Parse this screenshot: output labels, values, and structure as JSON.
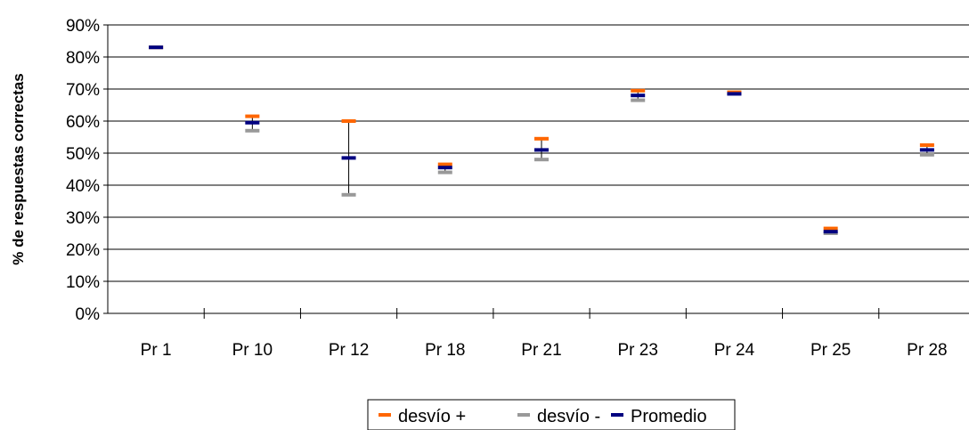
{
  "chart_data": {
    "type": "scatter",
    "title": "",
    "xlabel": "",
    "ylabel": "% de respuestas correctas",
    "ylim": [
      0,
      90
    ],
    "y_ticks": [
      "0%",
      "10%",
      "20%",
      "30%",
      "40%",
      "50%",
      "60%",
      "70%",
      "80%",
      "90%"
    ],
    "categories": [
      "Pr 1",
      "Pr 10",
      "Pr 12",
      "Pr 18",
      "Pr 21",
      "Pr 23",
      "Pr 24",
      "Pr 25",
      "Pr 28"
    ],
    "series": [
      {
        "name": "desvío +",
        "color": "#ff6600",
        "values": [
          83,
          61.5,
          60,
          46.5,
          54.5,
          69.5,
          69,
          26.5,
          52.5
        ]
      },
      {
        "name": "desvío -",
        "color": "#999999",
        "values": [
          83,
          57,
          37,
          44,
          48,
          66.5,
          68.5,
          25,
          49.5
        ]
      },
      {
        "name": "Promedio",
        "color": "#000080",
        "values": [
          83,
          59.5,
          48.5,
          45.5,
          51,
          68,
          68.5,
          25.5,
          51
        ]
      }
    ],
    "grid": true,
    "legend_position": "bottom"
  }
}
